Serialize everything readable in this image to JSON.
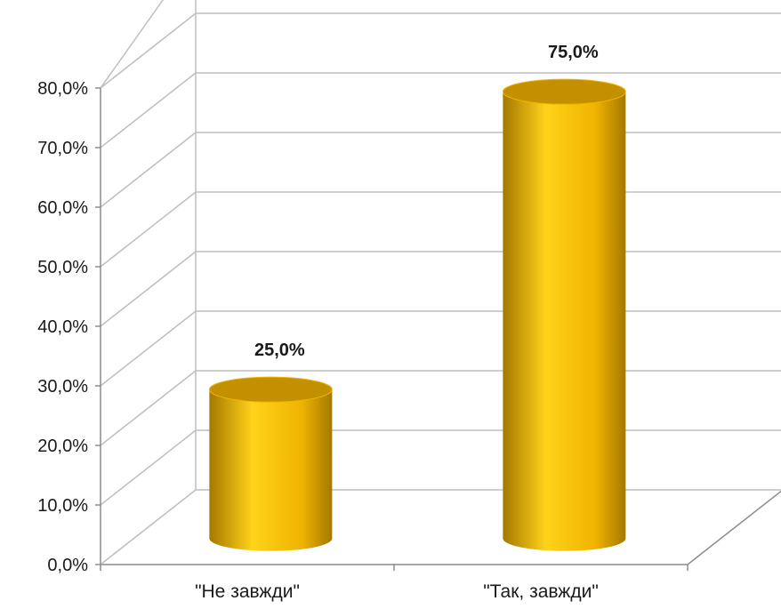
{
  "chart_data": {
    "type": "bar",
    "bar_style": "cylinder-3d",
    "categories": [
      "\"Не завжди\"",
      "\"Так, завжди\""
    ],
    "values": [
      25.0,
      75.0
    ],
    "data_labels": [
      "25,0%",
      "75,0%"
    ],
    "y_ticks": [
      0,
      10,
      20,
      30,
      40,
      50,
      60,
      70,
      80
    ],
    "y_tick_labels": [
      "0,0%",
      "10,0%",
      "20,0%",
      "30,0%",
      "40,0%",
      "50,0%",
      "60,0%",
      "70,0%",
      "80,0%"
    ],
    "ylim": [
      0,
      80
    ],
    "grid": true,
    "legend": false,
    "title": "",
    "xlabel": "",
    "ylabel": "",
    "colors": {
      "bar_light": "#ffd21a",
      "bar_mid": "#f0b400",
      "bar_dark": "#a57800",
      "bar_top": "#c29000",
      "grid": "#bfbfbf",
      "axis": "#8c8c8c"
    }
  }
}
